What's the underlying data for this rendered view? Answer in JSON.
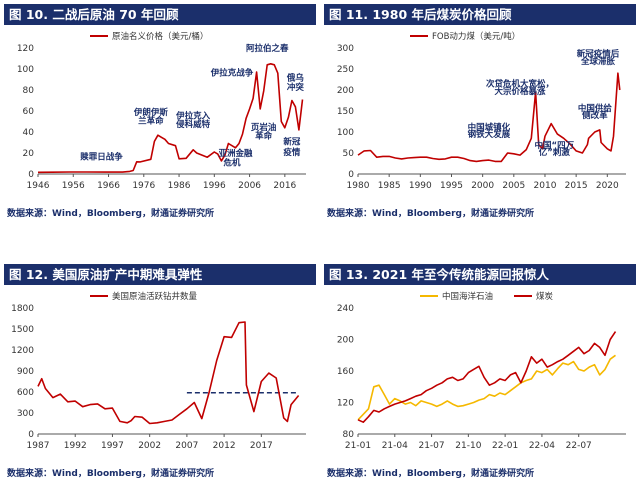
{
  "panels": [
    {
      "title": "图 10. 二战后原油 70 年回顾",
      "source": "数据来源：Wind，Bloomberg，财通证券研究所",
      "chart_data": {
        "type": "line",
        "series": [
          {
            "name": "原油名义价格（美元/桶）",
            "color": "#c00000",
            "x": [
              1946,
              1950,
              1955,
              1960,
              1965,
              1970,
              1972,
              1973,
              1974,
              1975,
              1978,
              1979,
              1980,
              1981,
              1982,
              1983,
              1985,
              1986,
              1988,
              1990,
              1991,
              1994,
              1996,
              1997,
              1998,
              1999,
              2000,
              2002,
              2003,
              2004,
              2005,
              2006,
              2007,
              2008,
              2009,
              2010,
              2011,
              2012,
              2013,
              2014,
              2015,
              2016,
              2017,
              2018,
              2019,
              2020,
              2021
            ],
            "values": [
              1.6,
              1.7,
              1.9,
              1.9,
              1.8,
              1.8,
              2.5,
              3.3,
              11.6,
              11.5,
              14,
              31,
              37,
              35,
              33,
              29,
              27,
              14.5,
              15,
              23,
              20,
              16,
              21,
              19,
              12.5,
              18,
              29,
              25,
              29,
              38,
              53,
              62,
              72,
              97,
              62,
              79,
              104,
              105,
              104,
              96,
              50,
              44,
              54,
              70,
              64,
              42,
              71
            ]
          }
        ],
        "xlim": [
          1946,
          2022
        ],
        "ylim": [
          0,
          120
        ],
        "xticks": [
          1946,
          1956,
          1966,
          1976,
          1986,
          1996,
          2006,
          2016
        ],
        "yticks": [
          0,
          20,
          40,
          60,
          80,
          100,
          120
        ],
        "legend": "top",
        "grid": false,
        "annotations": [
          {
            "text": "赎罪日战争",
            "x": 1964,
            "y": 14
          },
          {
            "text": "伊朗伊斯",
            "x": 1978,
            "y": 56
          },
          {
            "text": "兰革命",
            "x": 1978,
            "y": 48
          },
          {
            "text": "伊拉克入",
            "x": 1990,
            "y": 53
          },
          {
            "text": "侵科威特",
            "x": 1990,
            "y": 45
          },
          {
            "text": "亚洲金融",
            "x": 2002,
            "y": 17
          },
          {
            "text": "危机",
            "x": 2001,
            "y": 8
          },
          {
            "text": "伊拉克战争",
            "x": 2001,
            "y": 94
          },
          {
            "text": "页岩油",
            "x": 2010,
            "y": 42
          },
          {
            "text": "革命",
            "x": 2010,
            "y": 34
          },
          {
            "text": "阿拉伯之春",
            "x": 2011,
            "y": 117
          },
          {
            "text": "俄乌",
            "x": 2019,
            "y": 89
          },
          {
            "text": "冲突",
            "x": 2019,
            "y": 80
          },
          {
            "text": "新冠",
            "x": 2018,
            "y": 28
          },
          {
            "text": "疫情",
            "x": 2018,
            "y": 18
          }
        ]
      }
    },
    {
      "title": "图 11. 1980 年后煤炭价格回顾",
      "source": "数据来源：Wind，Bloomberg，财通证券研究所",
      "chart_data": {
        "type": "line",
        "series": [
          {
            "name": "FOB动力煤（美元/吨）",
            "color": "#c00000",
            "x": [
              1980,
              1981,
              1982,
              1983,
              1984,
              1985,
              1986,
              1987,
              1988,
              1989,
              1990,
              1991,
              1992,
              1993,
              1994,
              1995,
              1996,
              1997,
              1998,
              1999,
              2000,
              2001,
              2002,
              2003,
              2004,
              2005,
              2006,
              2007,
              2007.8,
              2008.5,
              2009,
              2009.6,
              2010,
              2011,
              2012,
              2013,
              2014,
              2015,
              2016,
              2016.8,
              2017,
              2018,
              2018.8,
              2019,
              2020,
              2020.6,
              2021,
              2021.7,
              2022
            ],
            "values": [
              45,
              55,
              56,
              40,
              42,
              42,
              38,
              36,
              38,
              39,
              40,
              40,
              37,
              35,
              36,
              40,
              40,
              37,
              32,
              30,
              32,
              33,
              30,
              30,
              50,
              48,
              45,
              58,
              85,
              195,
              70,
              60,
              90,
              120,
              95,
              85,
              72,
              55,
              50,
              70,
              85,
              100,
              105,
              75,
              60,
              55,
              90,
              240,
              200
            ]
          }
        ],
        "xlim": [
          1980,
          2023
        ],
        "ylim": [
          0,
          300
        ],
        "xticks": [
          1980,
          1985,
          1990,
          1995,
          2000,
          2005,
          2010,
          2015,
          2020
        ],
        "yticks": [
          0,
          50,
          100,
          150,
          200,
          250,
          300
        ],
        "legend": "top",
        "grid": false,
        "annotations": [
          {
            "text": "次贷危机大宽松，",
            "x": 2006,
            "y": 208
          },
          {
            "text": "大宗价格暴涨",
            "x": 2006,
            "y": 190
          },
          {
            "text": "中国城镇化",
            "x": 2001,
            "y": 105
          },
          {
            "text": "钢铁大发展",
            "x": 2001,
            "y": 88
          },
          {
            "text": "中国“四万",
            "x": 2011.5,
            "y": 62
          },
          {
            "text": "亿”刺激",
            "x": 2011.5,
            "y": 45
          },
          {
            "text": "中国供给",
            "x": 2018,
            "y": 150
          },
          {
            "text": "侧改革",
            "x": 2018,
            "y": 133
          },
          {
            "text": "新冠疫情后",
            "x": 2018.5,
            "y": 280
          },
          {
            "text": "全球滞胀",
            "x": 2018.5,
            "y": 262
          }
        ]
      }
    },
    {
      "title": "图 12. 美国原油扩产中期难具弹性",
      "source": "数据来源：Wind，Bloomberg，财通证券研究所",
      "chart_data": {
        "type": "line",
        "series": [
          {
            "name": "美国原油活跃钻井数量",
            "color": "#c00000",
            "x": [
              1987,
              1987.5,
              1988,
              1989,
              1990,
              1991,
              1992,
              1993,
              1994,
              1995,
              1996,
              1997,
              1998,
              1999,
              1999.5,
              2000,
              2001,
              2002,
              2003,
              2004,
              2005,
              2006,
              2007,
              2008,
              2009,
              2010,
              2011,
              2012,
              2013,
              2014,
              2014.8,
              2015,
              2016,
              2017,
              2018,
              2019,
              2020,
              2020.5,
              2021,
              2022
            ],
            "values": [
              680,
              790,
              650,
              520,
              570,
              460,
              470,
              390,
              420,
              430,
              360,
              370,
              180,
              160,
              190,
              250,
              240,
              150,
              160,
              180,
              200,
              280,
              360,
              450,
              220,
              600,
              1050,
              1390,
              1380,
              1590,
              1600,
              700,
              320,
              750,
              870,
              800,
              230,
              180,
              420,
              550
            ]
          }
        ],
        "xlim": [
          1987,
          2023
        ],
        "ylim": [
          0,
          1800
        ],
        "xticks": [
          1987,
          1992,
          1997,
          2002,
          2007,
          2012,
          2017
        ],
        "yticks": [
          0,
          300,
          600,
          900,
          1200,
          1500,
          1800
        ],
        "legend": "top",
        "grid": false,
        "reference_line": {
          "y": 590,
          "from": 2007,
          "to": 2022,
          "color": "#1b2f6b",
          "style": "dashed"
        }
      }
    },
    {
      "title": "图 13. 2021 年至今传统能源回报惊人",
      "source": "数据来源：Wind，Bloomberg，财通证券研究所",
      "chart_data": {
        "type": "line",
        "series": [
          {
            "name": "中国海洋石油",
            "color": "#f5b800",
            "x": [
              0,
              1,
              2,
              3,
              4,
              5,
              6,
              7,
              8,
              9,
              10,
              11,
              12,
              13,
              14,
              15,
              16,
              17,
              18,
              19,
              20,
              21,
              22,
              23,
              24,
              25,
              26,
              27,
              28,
              29,
              30,
              31,
              32,
              33,
              34,
              35,
              36,
              37,
              38,
              39,
              40,
              41,
              42,
              43,
              44,
              45,
              46,
              47,
              48,
              49
            ],
            "values": [
              98,
              105,
              112,
              140,
              142,
              130,
              118,
              125,
              122,
              118,
              120,
              116,
              122,
              120,
              118,
              115,
              118,
              122,
              118,
              115,
              116,
              118,
              120,
              123,
              125,
              130,
              128,
              132,
              130,
              135,
              140,
              145,
              148,
              150,
              160,
              158,
              162,
              155,
              163,
              170,
              168,
              172,
              162,
              160,
              165,
              168,
              155,
              162,
              175,
              180
            ]
          },
          {
            "name": "煤炭",
            "color": "#c00000",
            "x": [
              0,
              1,
              2,
              3,
              4,
              5,
              6,
              7,
              8,
              9,
              10,
              11,
              12,
              13,
              14,
              15,
              16,
              17,
              18,
              19,
              20,
              21,
              22,
              23,
              24,
              25,
              26,
              27,
              28,
              29,
              30,
              31,
              32,
              33,
              34,
              35,
              36,
              37,
              38,
              39,
              40,
              41,
              42,
              43,
              44,
              45,
              46,
              47,
              48,
              49
            ],
            "values": [
              98,
              95,
              102,
              110,
              108,
              112,
              115,
              118,
              120,
              122,
              125,
              128,
              130,
              135,
              138,
              142,
              145,
              150,
              152,
              148,
              150,
              158,
              162,
              166,
              152,
              142,
              145,
              150,
              148,
              155,
              158,
              145,
              160,
              178,
              170,
              175,
              165,
              168,
              172,
              175,
              180,
              185,
              190,
              182,
              186,
              195,
              190,
              180,
              200,
              210
            ]
          }
        ],
        "xlim": [
          0,
          51
        ],
        "ylim": [
          80,
          240
        ],
        "xticks": [
          "21-01",
          "21-04",
          "21-07",
          "21-10",
          "22-01",
          "22-04",
          "22-07"
        ],
        "xtick_positions": [
          0,
          7,
          14,
          21,
          28,
          35,
          42
        ],
        "yticks": [
          80,
          120,
          160,
          200,
          240
        ],
        "legend": "top",
        "grid": false
      }
    }
  ]
}
